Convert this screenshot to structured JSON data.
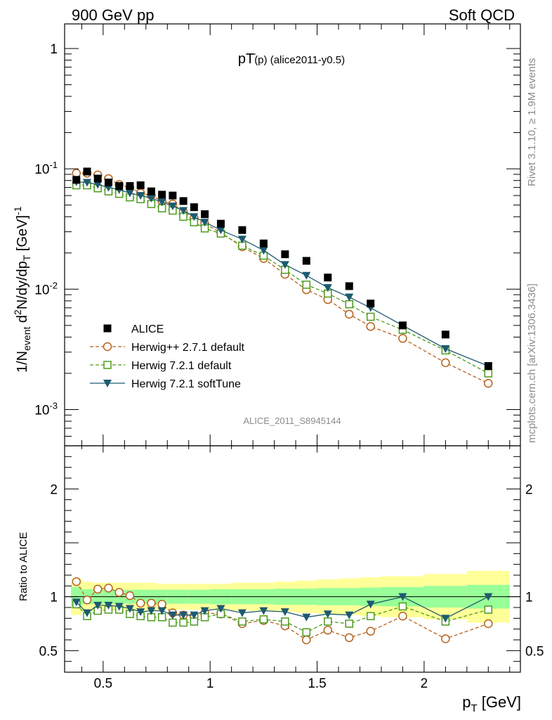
{
  "header": {
    "left": "900 GeV pp",
    "right": "Soft QCD",
    "title_main": "pT",
    "title_sub": "(p)",
    "title_rest": " (alice2011-y0.5)",
    "side_top": "Rivet 3.1.10, ≥ 1.9M events",
    "side_bottom": "mcplots.cern.ch [arXiv:1306.3436]",
    "watermark": "ALICE_2011_S8945144"
  },
  "axes": {
    "ylabel_main": "1/N",
    "ylabel_sub": "event",
    "ylabel_rest": " d",
    "ylabel_sup": "2",
    "ylabel_tail": "N/dy/dp",
    "ylabel_sub2": "T",
    "ylabel_unit": " [GeV]",
    "ylabel_unit_sup": "-1",
    "ratio_ylabel": "Ratio to ALICE",
    "xlabel_main": "p",
    "xlabel_sub": "T",
    "xlabel_unit": " [GeV]",
    "xticks": [
      {
        "v": 0.5,
        "label": "0.5"
      },
      {
        "v": 1.0,
        "label": "1"
      },
      {
        "v": 1.5,
        "label": "1.5"
      },
      {
        "v": 2.0,
        "label": "2"
      }
    ],
    "yticks_main": [
      {
        "v": 1,
        "base": "1",
        "exp": ""
      },
      {
        "v": 0.1,
        "base": "10",
        "exp": "-1"
      },
      {
        "v": 0.01,
        "base": "10",
        "exp": "-2"
      },
      {
        "v": 0.001,
        "base": "10",
        "exp": "-3"
      }
    ],
    "yticks_ratio": [
      {
        "v": 0.5,
        "label": "0.5"
      },
      {
        "v": 1,
        "label": "1"
      },
      {
        "v": 2,
        "label": "2"
      }
    ]
  },
  "chart_data": [
    {
      "type": "scatter",
      "scale": "log",
      "xlim": [
        0.32,
        2.45
      ],
      "ylim": [
        0.0005,
        1.6
      ],
      "x": [
        0.375,
        0.425,
        0.475,
        0.525,
        0.575,
        0.625,
        0.675,
        0.725,
        0.775,
        0.825,
        0.875,
        0.925,
        0.975,
        1.05,
        1.15,
        1.25,
        1.35,
        1.45,
        1.55,
        1.65,
        1.75,
        1.9,
        2.1,
        2.3
      ],
      "legend": {
        "position": "lower-left"
      },
      "series": [
        {
          "name": "ALICE",
          "color": "#000000",
          "marker": "filled-square",
          "line": "none",
          "values": [
            0.081,
            0.095,
            0.083,
            0.077,
            0.072,
            0.072,
            0.073,
            0.065,
            0.061,
            0.06,
            0.054,
            0.048,
            0.042,
            0.035,
            0.031,
            0.024,
            0.0195,
            0.0172,
            0.0125,
            0.0106,
            0.0076,
            0.005,
            0.0042,
            0.0023
          ]
        },
        {
          "name": "Herwig++ 2.7.1 default",
          "color": "#b5621b",
          "marker": "open-circle",
          "line": "dashed",
          "values": [
            0.092,
            0.092,
            0.089,
            0.083,
            0.074,
            0.07,
            0.063,
            0.06,
            0.054,
            0.051,
            0.044,
            0.039,
            0.035,
            0.0295,
            0.0225,
            0.018,
            0.0133,
            0.0099,
            0.0082,
            0.0062,
            0.0049,
            0.0039,
            0.00245,
            0.00165
          ]
        },
        {
          "name": "Herwig 7.2.1 default",
          "color": "#4c9b1e",
          "marker": "open-square",
          "line": "dashed",
          "values": [
            0.073,
            0.073,
            0.069,
            0.065,
            0.062,
            0.058,
            0.056,
            0.051,
            0.047,
            0.045,
            0.04,
            0.036,
            0.032,
            0.029,
            0.023,
            0.019,
            0.0145,
            0.0109,
            0.0092,
            0.0075,
            0.0059,
            0.0046,
            0.0031,
            0.002
          ]
        },
        {
          "name": "Herwig 7.2.1 softTune",
          "color": "#1d5a70",
          "marker": "filled-triangle-down",
          "line": "solid",
          "values": [
            0.078,
            0.077,
            0.074,
            0.07,
            0.067,
            0.063,
            0.06,
            0.057,
            0.053,
            0.049,
            0.045,
            0.04,
            0.036,
            0.031,
            0.026,
            0.021,
            0.016,
            0.013,
            0.0103,
            0.0086,
            0.007,
            0.005,
            0.0032,
            0.0023
          ]
        }
      ]
    },
    {
      "type": "scatter",
      "ylim": [
        0.3,
        2.4
      ],
      "xlim": [
        0.32,
        2.45
      ],
      "reference_line": 1,
      "bands": {
        "edges": [
          0.35,
          0.4,
          0.45,
          0.5,
          0.55,
          0.6,
          0.65,
          0.7,
          0.75,
          0.8,
          0.85,
          0.9,
          0.95,
          1.0,
          1.1,
          1.2,
          1.3,
          1.4,
          1.5,
          1.6,
          1.7,
          1.8,
          2.0,
          2.2,
          2.4
        ],
        "inner_color": "#99ff99",
        "outer_color": "#ffff99",
        "inner_half_width": [
          0.09,
          0.07,
          0.065,
          0.065,
          0.065,
          0.065,
          0.065,
          0.065,
          0.065,
          0.065,
          0.065,
          0.065,
          0.065,
          0.07,
          0.07,
          0.07,
          0.075,
          0.075,
          0.08,
          0.08,
          0.085,
          0.09,
          0.1,
          0.11
        ],
        "outer_half_width": [
          0.17,
          0.14,
          0.13,
          0.13,
          0.13,
          0.13,
          0.13,
          0.13,
          0.12,
          0.12,
          0.12,
          0.12,
          0.12,
          0.12,
          0.13,
          0.13,
          0.14,
          0.15,
          0.16,
          0.17,
          0.18,
          0.19,
          0.21,
          0.24
        ]
      },
      "series": [
        {
          "name": "Herwig++ 2.7.1 default",
          "color": "#b5621b",
          "marker": "open-circle",
          "line": "dashed",
          "values": [
            1.14,
            0.97,
            1.07,
            1.08,
            1.04,
            1.01,
            0.94,
            0.94,
            0.93,
            0.85,
            0.83,
            0.82,
            0.85,
            0.84,
            0.75,
            0.78,
            0.73,
            0.6,
            0.69,
            0.62,
            0.68,
            0.82,
            0.61,
            0.75
          ]
        },
        {
          "name": "Herwig 7.2.1 default",
          "color": "#4c9b1e",
          "marker": "open-square",
          "line": "dashed",
          "values": [
            0.93,
            0.82,
            0.87,
            0.88,
            0.88,
            0.84,
            0.82,
            0.81,
            0.81,
            0.76,
            0.76,
            0.77,
            0.81,
            0.84,
            0.77,
            0.79,
            0.77,
            0.67,
            0.77,
            0.75,
            0.82,
            0.91,
            0.77,
            0.88
          ]
        },
        {
          "name": "Herwig 7.2.1 softTune",
          "color": "#1d5a70",
          "marker": "filled-triangle-down",
          "line": "solid",
          "values": [
            0.95,
            0.85,
            0.92,
            0.92,
            0.91,
            0.89,
            0.86,
            0.87,
            0.87,
            0.83,
            0.83,
            0.83,
            0.87,
            0.89,
            0.85,
            0.87,
            0.86,
            0.81,
            0.84,
            0.83,
            0.93,
            1.0,
            0.8,
            1.0
          ]
        }
      ]
    }
  ]
}
